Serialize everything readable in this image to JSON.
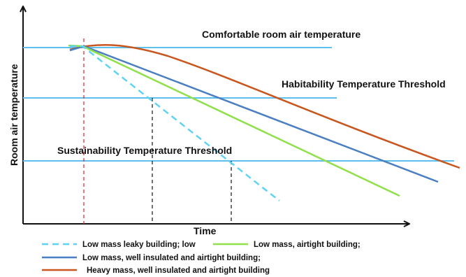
{
  "chart_data": {
    "type": "line",
    "xlabel": "Time",
    "ylabel": "Room air temperature",
    "reference_lines": [
      {
        "label": "Comfortable room air temperature",
        "color": "#5bc0eb"
      },
      {
        "label": "Habitability Temperature Threshold",
        "color": "#5bc0eb"
      },
      {
        "label": "Sustainability Temperature Threshold",
        "color": "#5bc0eb"
      }
    ],
    "series": [
      {
        "name": "Low mass leaky building; low",
        "color": "#5fd3f3",
        "dash": "dashed"
      },
      {
        "name": "Low mass, airtight building;",
        "color": "#8fe04a",
        "dash": "solid"
      },
      {
        "name": "Low mass, well insulated and airtight building;",
        "color": "#4a7fc1",
        "dash": "solid"
      },
      {
        "name": "Heavy mass, well insulated and airtight building",
        "color": "#c8561e",
        "dash": "solid"
      }
    ],
    "markers": [
      {
        "color": "#e0303a",
        "dash": "dashed"
      },
      {
        "color": "#222222",
        "dash": "dashed"
      },
      {
        "color": "#222222",
        "dash": "dashed"
      }
    ],
    "grid": false,
    "legend_position": "bottom"
  }
}
